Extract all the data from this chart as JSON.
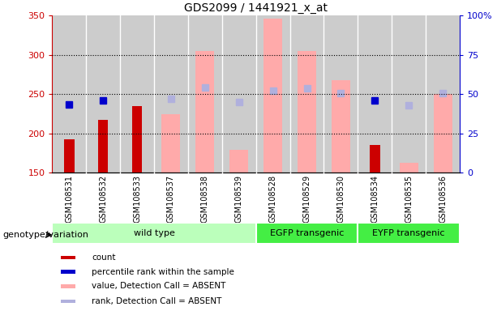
{
  "title": "GDS2099 / 1441921_x_at",
  "samples": [
    "GSM108531",
    "GSM108532",
    "GSM108533",
    "GSM108537",
    "GSM108538",
    "GSM108539",
    "GSM108528",
    "GSM108529",
    "GSM108530",
    "GSM108534",
    "GSM108535",
    "GSM108536"
  ],
  "count_values": [
    192,
    217,
    235,
    null,
    null,
    null,
    null,
    null,
    null,
    185,
    null,
    null
  ],
  "percentile_values": [
    237,
    242,
    null,
    null,
    null,
    null,
    null,
    null,
    null,
    242,
    null,
    null
  ],
  "absent_value_values": [
    null,
    null,
    null,
    224,
    305,
    179,
    346,
    305,
    268,
    null,
    162,
    250
  ],
  "absent_rank_values": [
    null,
    null,
    null,
    244,
    258,
    240,
    254,
    257,
    251,
    null,
    236,
    251
  ],
  "ylim": [
    150,
    350
  ],
  "yticks": [
    150,
    200,
    250,
    300,
    350
  ],
  "right_yticks": [
    0,
    25,
    50,
    75,
    100
  ],
  "right_yticklabels": [
    "0",
    "25",
    "50",
    "75",
    "100%"
  ],
  "groups": [
    {
      "label": "wild type",
      "start": 0,
      "end": 5,
      "color": "#bbffbb"
    },
    {
      "label": "EGFP transgenic",
      "start": 6,
      "end": 8,
      "color": "#44ee44"
    },
    {
      "label": "EYFP transgenic",
      "start": 9,
      "end": 11,
      "color": "#44ee44"
    }
  ],
  "group_label_prefix": "genotype/variation",
  "count_color": "#cc0000",
  "percentile_color": "#0000cc",
  "absent_value_color": "#ffaaaa",
  "absent_rank_color": "#b0b0dd",
  "plot_bg": "#cccccc",
  "grid_color": "#000000",
  "bar_bg_color": "#bbbbbb"
}
